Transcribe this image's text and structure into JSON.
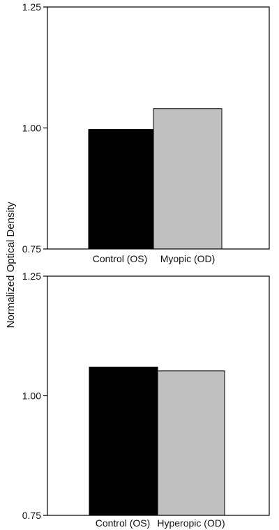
{
  "ylabel": "Normalized Optical Density",
  "chart_data": [
    {
      "type": "bar",
      "categories": [
        "Control (OS)",
        "Myopic (OD)"
      ],
      "values": [
        0.997,
        1.04
      ],
      "colors": [
        "#000000",
        "#c0c0c0"
      ],
      "ylim": [
        0.75,
        1.25
      ],
      "yticks": [
        "0.75",
        "1.00",
        "1.25"
      ],
      "grid": false
    },
    {
      "type": "bar",
      "categories": [
        "Control (OS)",
        "Hyperopic (OD)"
      ],
      "values": [
        1.06,
        1.052
      ],
      "colors": [
        "#000000",
        "#c0c0c0"
      ],
      "ylim": [
        0.75,
        1.25
      ],
      "yticks": [
        "0.75",
        "1.00",
        "1.25"
      ],
      "grid": false
    }
  ]
}
